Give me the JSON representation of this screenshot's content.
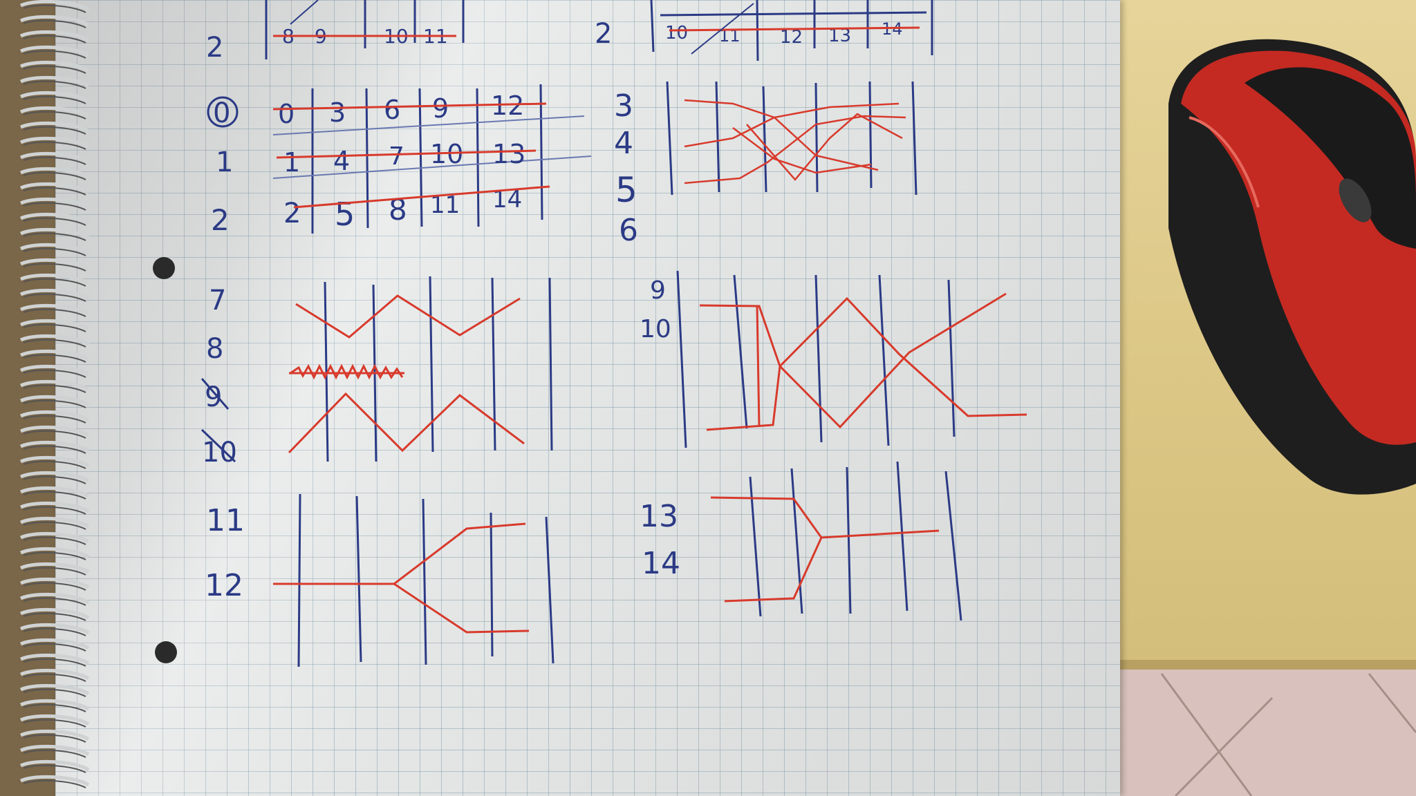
{
  "photo": {
    "subject": "spiral notebook with hand-drawn tables and line diagrams next to a mouse",
    "ink_colors": {
      "blue_pen": "#2b3a85",
      "red_pen": "#d83a2c"
    }
  },
  "top_rows": {
    "row_2_left": "2",
    "row_2_left_cells": [
      "8",
      "9",
      "10",
      "11"
    ],
    "row_2_right": "2",
    "row_2_right_cells": [
      "10",
      "11",
      "12",
      "13",
      "14"
    ]
  },
  "grid_table": {
    "row_labels": [
      "0",
      "1",
      "2"
    ],
    "rows": [
      [
        "0",
        "3",
        "6",
        "9",
        "12"
      ],
      [
        "1",
        "4",
        "7",
        "10",
        "13"
      ],
      [
        "2",
        "5",
        "8",
        "11",
        "14"
      ]
    ]
  },
  "diagrams": {
    "a_labels": [
      "3",
      "4",
      "5",
      "6"
    ],
    "b_labels": [
      "7",
      "8",
      "9",
      "10"
    ],
    "c_labels": [
      "9",
      "10"
    ],
    "d_labels": [
      "11",
      "12"
    ],
    "e_labels": [
      "13",
      "14"
    ]
  },
  "mouse": {
    "body_color": "#c42a22",
    "grip_color": "#1e1e1e"
  }
}
